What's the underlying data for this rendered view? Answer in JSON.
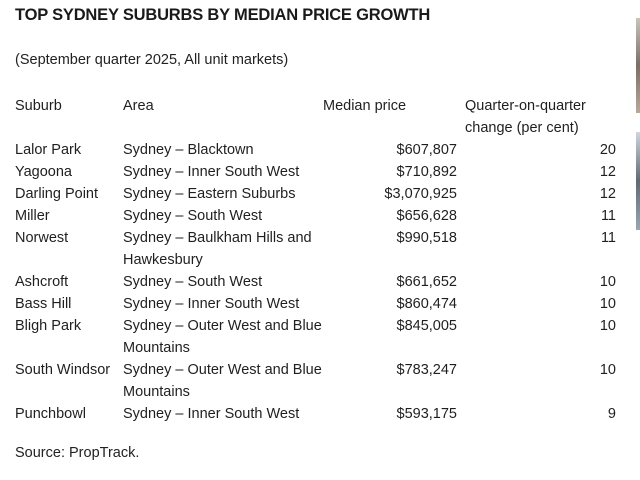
{
  "title": "TOP SYDNEY SUBURBS BY MEDIAN PRICE GROWTH",
  "subtitle": "(September quarter 2025, All unit markets)",
  "table": {
    "headers": {
      "suburb": "Suburb",
      "area": "Area",
      "price": "Median price",
      "change": "Quarter-on-quarter change (per cent)"
    },
    "rows": [
      {
        "suburb": "Lalor Park",
        "area": "Sydney – Blacktown",
        "price": "$607,807",
        "change": "20"
      },
      {
        "suburb": "Yagoona",
        "area": "Sydney – Inner South West",
        "price": "$710,892",
        "change": "12"
      },
      {
        "suburb": "Darling Point",
        "area": "Sydney – Eastern Suburbs",
        "price": "$3,070,925",
        "change": "12"
      },
      {
        "suburb": "Miller",
        "area": "Sydney – South West",
        "price": "$656,628",
        "change": "11"
      },
      {
        "suburb": "Norwest",
        "area": "Sydney – Baulkham Hills and Hawkesbury",
        "price": "$990,518",
        "change": "11"
      },
      {
        "suburb": "Ashcroft",
        "area": "Sydney – South West",
        "price": "$661,652",
        "change": "10"
      },
      {
        "suburb": "Bass Hill",
        "area": "Sydney – Inner South West",
        "price": "$860,474",
        "change": "10"
      },
      {
        "suburb": "Bligh Park",
        "area": "Sydney – Outer West and Blue Mountains",
        "price": "$845,005",
        "change": "10"
      },
      {
        "suburb": "South Windsor",
        "area": "Sydney – Outer West and Blue Mountains",
        "price": "$783,247",
        "change": "10"
      },
      {
        "suburb": "Punchbowl",
        "area": "Sydney – Inner South West",
        "price": "$593,175",
        "change": "9"
      }
    ]
  },
  "source": "Source: PropTrack."
}
